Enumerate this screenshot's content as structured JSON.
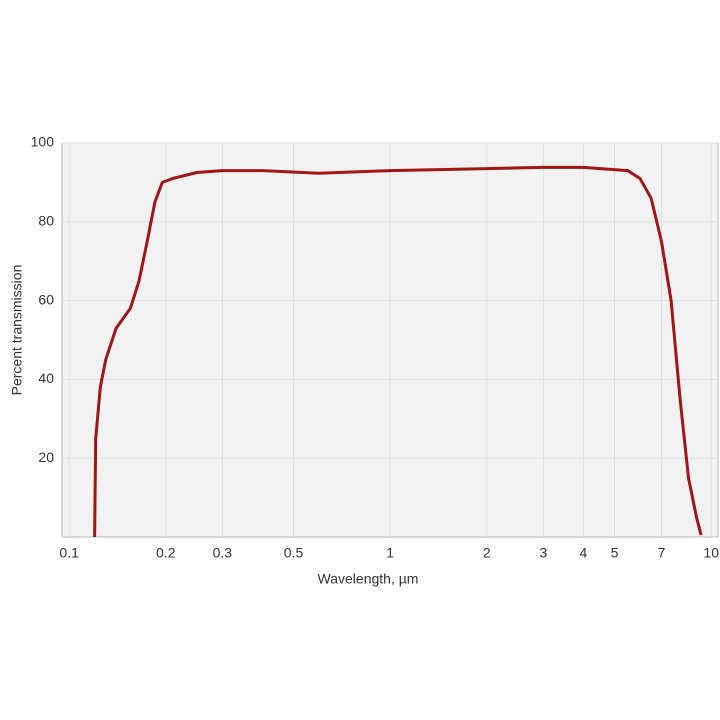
{
  "chart_data": {
    "type": "line",
    "x_label": "Wavelength, µm",
    "y_label": "Percent transmission",
    "x": [
      0.12,
      0.121,
      0.125,
      0.13,
      0.14,
      0.155,
      0.165,
      0.175,
      0.185,
      0.195,
      0.21,
      0.25,
      0.3,
      0.4,
      0.6,
      1,
      2,
      3,
      4,
      5.5,
      6,
      6.5,
      7,
      7.5,
      8,
      8.5,
      9,
      9.3
    ],
    "series": [
      {
        "color": "#a01616",
        "values": [
          0,
          25,
          38,
          45,
          53,
          58,
          65,
          75,
          85,
          90,
          91,
          92.5,
          93,
          93,
          92.3,
          93,
          93.5,
          93.8,
          93.8,
          93,
          91,
          86,
          75,
          60,
          35,
          15,
          5,
          0.5
        ]
      }
    ],
    "log_x": true,
    "xlim": [
      0.095,
      10.5
    ],
    "xticks": [
      0.1,
      0.2,
      0.3,
      0.5,
      1,
      2,
      3,
      4,
      5,
      7,
      10
    ],
    "ylim": [
      0,
      100
    ],
    "yticks": [
      20,
      40,
      60,
      80,
      100
    ],
    "grid": true
  }
}
